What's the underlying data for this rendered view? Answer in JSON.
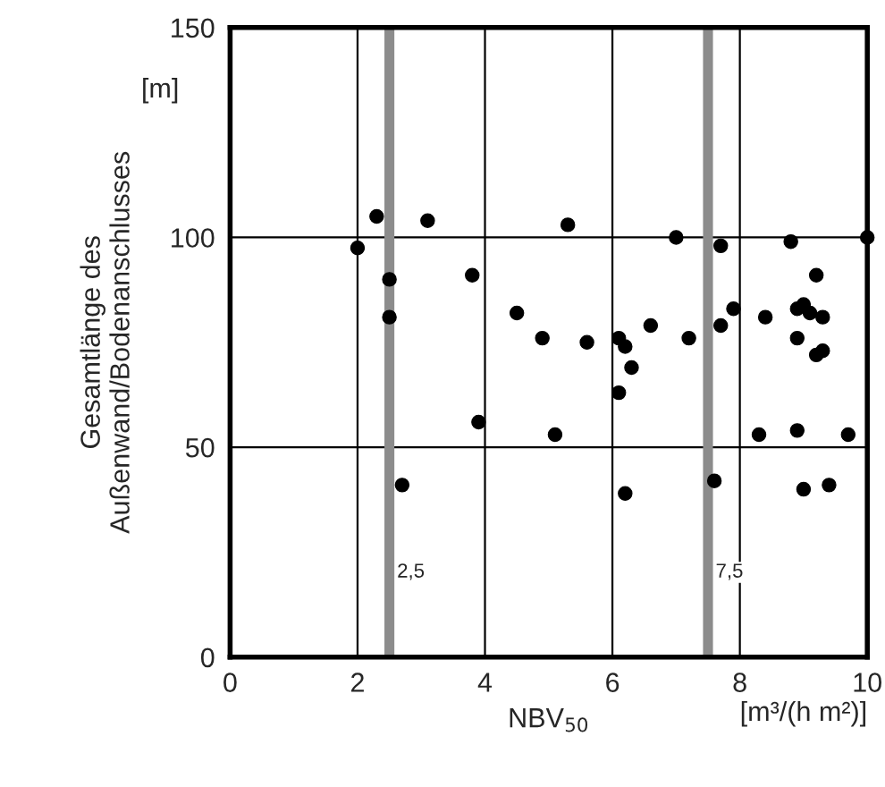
{
  "chart_data": {
    "type": "scatter",
    "xlabel": "NBV$_{50}$",
    "ylabel": "Gesamtlänge des\nAußenwand/Bodenanschlusses",
    "annotations": [
      "[m]",
      "[m³/(h m²)]"
    ],
    "series": [
      {
        "color": "#000000",
        "x": [
          2.0,
          2.3,
          2.5,
          2.5,
          2.7,
          3.1,
          3.8,
          3.9,
          4.5,
          4.9,
          5.1,
          5.3,
          5.6,
          6.1,
          6.1,
          6.2,
          6.2,
          6.3,
          6.6,
          7.0,
          7.2,
          7.6,
          7.7,
          7.7,
          7.9,
          8.3,
          8.4,
          8.8,
          8.9,
          8.9,
          8.9,
          9.0,
          9.0,
          9.1,
          9.2,
          9.2,
          9.3,
          9.3,
          9.4,
          9.7,
          10.0
        ],
        "values": [
          97.5,
          105,
          90,
          81,
          41,
          104,
          91,
          56,
          82,
          76,
          53,
          103,
          75,
          76,
          63,
          74,
          39,
          69,
          79,
          100,
          76,
          42,
          98,
          79,
          83,
          53,
          81,
          99,
          83,
          76,
          54,
          84,
          40,
          82,
          91,
          72,
          73,
          81,
          41,
          53,
          100
        ]
      }
    ],
    "xlim": [
      0,
      10
    ],
    "ylim": [
      0,
      150
    ],
    "xticks": [
      0,
      2,
      4,
      6,
      8,
      10
    ],
    "yticks": [
      0,
      50,
      100,
      150
    ],
    "grid": true,
    "marker": "circle",
    "ref_lines": [
      {
        "axis": "x",
        "value": 2.5,
        "label": "2,5",
        "color": "#8c8c8c"
      },
      {
        "axis": "x",
        "value": 7.5,
        "label": "7,5",
        "color": "#8c8c8c"
      }
    ]
  }
}
